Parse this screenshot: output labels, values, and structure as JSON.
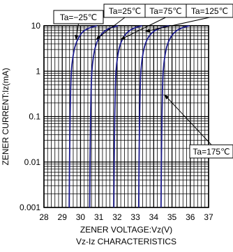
{
  "chart_data": {
    "type": "line",
    "title": "Vz-Iz CHARACTERISTICS",
    "xlabel": "ZENER VOLTAGE:Vz(V)",
    "ylabel": "ZENER CURRENT:Iz(mA)",
    "xlim": [
      28,
      37
    ],
    "ylim": [
      0.001,
      10
    ],
    "y_scale": "log",
    "grid": true,
    "x_ticks": [
      "28",
      "29",
      "30",
      "31",
      "32",
      "33",
      "34",
      "35",
      "36",
      "37"
    ],
    "y_ticks": [
      "0.001",
      "0.01",
      "0.1",
      "1",
      "10"
    ],
    "series": [
      {
        "name": "Ta=−25℃",
        "color": "#1c1c8c",
        "x": [
          29.38,
          29.4,
          29.43,
          29.46,
          29.5,
          29.58,
          29.7,
          29.9,
          30.15,
          30.5,
          30.9
        ],
        "y": [
          0.001,
          0.01,
          0.1,
          0.4,
          1,
          2,
          3.5,
          5.5,
          7.5,
          9,
          10
        ]
      },
      {
        "name": "Ta=25℃",
        "color": "#1c1c8c",
        "x": [
          30.5,
          30.52,
          30.55,
          30.58,
          30.62,
          30.7,
          30.82,
          31.02,
          31.3,
          31.65,
          32.05
        ],
        "y": [
          0.001,
          0.01,
          0.1,
          0.4,
          1,
          2,
          3.5,
          5.5,
          7.5,
          9,
          10
        ]
      },
      {
        "name": "Ta=75℃",
        "color": "#1c1c8c",
        "x": [
          31.82,
          31.84,
          31.87,
          31.9,
          31.94,
          32.02,
          32.14,
          32.34,
          32.62,
          32.97,
          33.37
        ],
        "y": [
          0.001,
          0.01,
          0.1,
          0.4,
          1,
          2,
          3.5,
          5.5,
          7.5,
          9,
          10
        ]
      },
      {
        "name": "Ta=125℃",
        "color": "#1c1c8c",
        "x": [
          33.18,
          33.2,
          33.23,
          33.26,
          33.3,
          33.38,
          33.5,
          33.7,
          34.0,
          34.4,
          34.85
        ],
        "y": [
          0.001,
          0.01,
          0.1,
          0.4,
          1,
          2,
          3.5,
          5.5,
          7.5,
          9,
          10
        ]
      },
      {
        "name": "Ta=175℃",
        "color": "#1c1c8c",
        "x": [
          34.4,
          34.42,
          34.45,
          34.48,
          34.52,
          34.6,
          34.72,
          34.92,
          35.2,
          35.55,
          35.95
        ],
        "y": [
          0.001,
          0.01,
          0.1,
          0.4,
          1,
          2,
          3.5,
          5.5,
          7.5,
          9,
          10
        ]
      }
    ],
    "annotations": [
      {
        "text": "Ta=−25℃",
        "x": 29.75,
        "y": 5,
        "series": 0
      },
      {
        "text": "Ta=25℃",
        "x": 30.85,
        "y": 5,
        "series": 1
      },
      {
        "text": "Ta=75℃",
        "x": 32.2,
        "y": 5,
        "series": 2
      },
      {
        "text": "Ta=125℃",
        "x": 33.55,
        "y": 7.5,
        "series": 3
      },
      {
        "text": "Ta=175℃",
        "x": 34.6,
        "y": 0.3,
        "series": 4
      }
    ]
  }
}
